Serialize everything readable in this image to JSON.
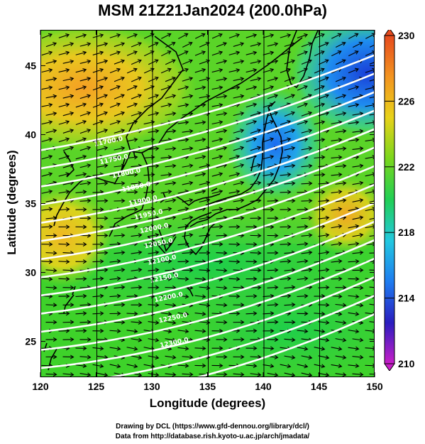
{
  "title": "MSM 21Z21Jan2024 (200.0hPa)",
  "xlabel": "Longitude (degrees)",
  "ylabel": "Latitude  (degrees)",
  "credits": [
    "Drawing by DCL (https://www.gfd-dennou.org/library/dcl/)",
    "Data from http://database.rish.kyoto-u.ac.jp/arch/jmadata/"
  ],
  "chart_data": {
    "type": "heatmap",
    "xlim": [
      120,
      150
    ],
    "ylim": [
      22.4,
      47.6
    ],
    "xticks": [
      120,
      125,
      130,
      135,
      140,
      145,
      150
    ],
    "yticks": [
      25,
      30,
      35,
      40,
      45
    ],
    "grid": true,
    "colorbar": {
      "min": 210,
      "max": 230,
      "ticks": [
        210,
        214,
        218,
        222,
        226,
        230
      ],
      "colors": [
        "#c81ec8",
        "#2a1dbf",
        "#1e7cf0",
        "#22c8e0",
        "#21cf55",
        "#7ad61c",
        "#e8d21a",
        "#f39420",
        "#e64a1e"
      ]
    },
    "contour_labels": [
      {
        "text": "11700.0",
        "lon": 124.8,
        "lat": 39.2
      },
      {
        "text": "11750.0",
        "lon": 125.3,
        "lat": 37.9
      },
      {
        "text": "11800.0",
        "lon": 126.4,
        "lat": 36.9
      },
      {
        "text": "11850.0",
        "lon": 127.3,
        "lat": 35.9
      },
      {
        "text": "11900.0",
        "lon": 127.9,
        "lat": 34.9
      },
      {
        "text": "11950.0",
        "lon": 128.4,
        "lat": 33.9
      },
      {
        "text": "12000.0",
        "lon": 128.9,
        "lat": 32.9
      },
      {
        "text": "12050.0",
        "lon": 129.3,
        "lat": 31.8
      },
      {
        "text": "12100.0",
        "lon": 129.6,
        "lat": 30.6
      },
      {
        "text": "12150.0",
        "lon": 129.8,
        "lat": 29.3
      },
      {
        "text": "12200.0",
        "lon": 130.2,
        "lat": 27.9
      },
      {
        "text": "12250.0",
        "lon": 130.6,
        "lat": 26.4
      },
      {
        "text": "12300.0",
        "lon": 130.7,
        "lat": 24.6
      }
    ],
    "field_description": "Temperature shading (K) with wind vectors and geopotential height contours"
  }
}
